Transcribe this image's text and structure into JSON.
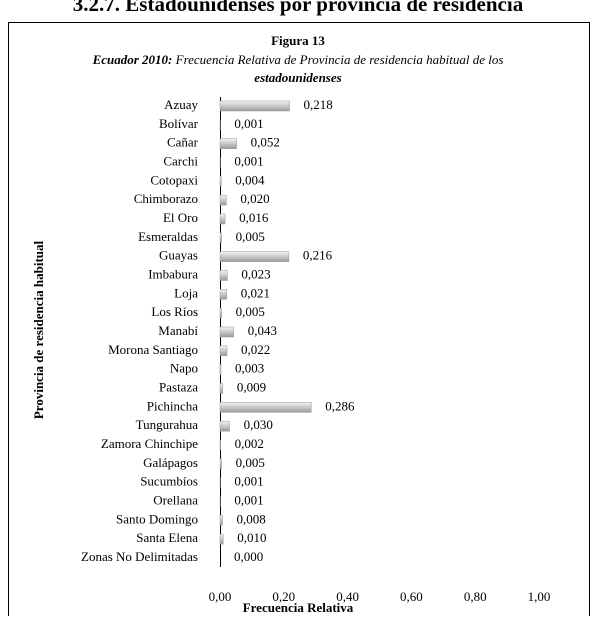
{
  "chart_data": {
    "type": "bar",
    "orientation": "horizontal",
    "heading": "3.2.7. Estadounidenses por provincia de residencia",
    "title": "Figura 13",
    "subtitle_lead": "Ecuador 2010:",
    "subtitle": "Frecuencia Relativa de Provincia de residencia habitual de los",
    "subtitle_end": "estadounidenses",
    "xlabel": "Frecuencia Relativa",
    "ylabel": "Provincia de residencia habitual",
    "categories": [
      "Azuay",
      "Bolívar",
      "Cañar",
      "Carchi",
      "Cotopaxi",
      "Chimborazo",
      "El Oro",
      "Esmeraldas",
      "Guayas",
      "Imbabura",
      "Loja",
      "Los Ríos",
      "Manabí",
      "Morona Santiago",
      "Napo",
      "Pastaza",
      "Pichincha",
      "Tungurahua",
      "Zamora Chinchipe",
      "Galápagos",
      "Sucumbíos",
      "Orellana",
      "Santo Domingo",
      "Santa Elena",
      "Zonas No Delimitadas"
    ],
    "values": [
      0.218,
      0.001,
      0.052,
      0.001,
      0.004,
      0.02,
      0.016,
      0.005,
      0.216,
      0.023,
      0.021,
      0.005,
      0.043,
      0.022,
      0.003,
      0.009,
      0.286,
      0.03,
      0.002,
      0.005,
      0.001,
      0.001,
      0.008,
      0.01,
      0.0
    ],
    "value_labels": [
      "0,218",
      "0,001",
      "0,052",
      "0,001",
      "0,004",
      "0,020",
      "0,016",
      "0,005",
      "0,216",
      "0,023",
      "0,021",
      "0,005",
      "0,043",
      "0,022",
      "0,003",
      "0,009",
      "0,286",
      "0,030",
      "0,002",
      "0,005",
      "0,001",
      "0,001",
      "0,008",
      "0,010",
      "0,000"
    ],
    "color": "#c0c0c0",
    "xlim": [
      0,
      1
    ],
    "xticks": [
      {
        "value": 0,
        "label": "0,00"
      },
      {
        "value": 0.2,
        "label": "0,20"
      },
      {
        "value": 0.4,
        "label": "0,40"
      },
      {
        "value": 0.6,
        "label": "0,60"
      },
      {
        "value": 0.8,
        "label": "0,80"
      },
      {
        "value": 1,
        "label": "1,00"
      }
    ],
    "grid": false
  }
}
